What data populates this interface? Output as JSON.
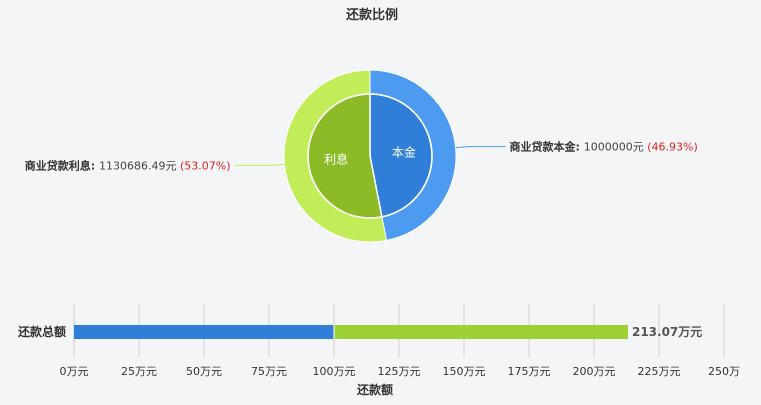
{
  "chart_data": [
    {
      "type": "pie",
      "title": "还款比例",
      "unit": "元",
      "slices": [
        {
          "name": "商业贷款本金",
          "inner_label": "本金",
          "value": 1000000,
          "value_text": "1000000元",
          "percent_text": "(46.93%)",
          "inner_color": "#2f7ed8",
          "outer_color": "#4d9bf0"
        },
        {
          "name": "商业贷款利息",
          "inner_label": "利息",
          "value": 1130686.49,
          "value_text": "1130686.49元",
          "percent_text": "(53.07%)",
          "inner_color": "#8cbb27",
          "outer_color": "#c0ed58"
        }
      ]
    },
    {
      "type": "bar",
      "orientation": "horizontal",
      "stacked": true,
      "categories": [
        "还款总额"
      ],
      "series": [
        {
          "values": [
            100
          ],
          "color": "#2f7ed8"
        },
        {
          "values": [
            113.07
          ],
          "color": "#9ed134"
        }
      ],
      "total_label": "213.07万元",
      "xlabel": "还款额",
      "xlim": [
        0,
        250
      ],
      "xticks": [
        "0万元",
        "25万元",
        "50万元",
        "75万元",
        "100万元",
        "125万元",
        "150万元",
        "175万元",
        "200万元",
        "225万元",
        "250万"
      ]
    }
  ]
}
